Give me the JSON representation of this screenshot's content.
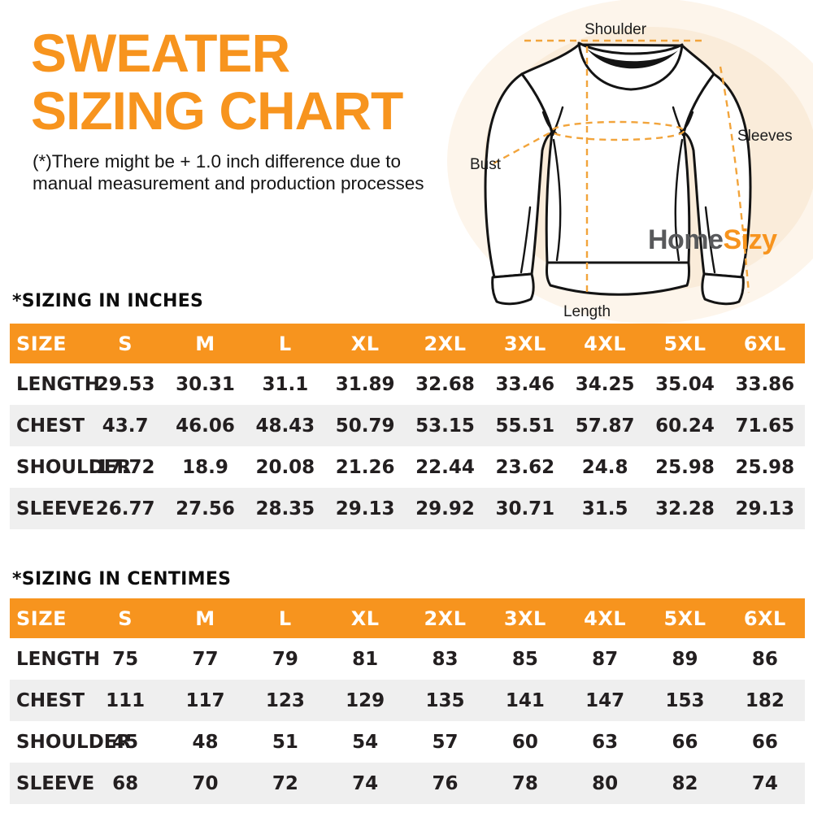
{
  "page": {
    "title_line1": "SWEATER",
    "title_line2": "SIZING CHART",
    "subtitle_line1": "(*)There might be + 1.0 inch difference due to",
    "subtitle_line2": "manual measurement and production processes"
  },
  "diagram": {
    "labels": {
      "shoulder": "Shoulder",
      "bust": "Bust",
      "sleeves": "Sleeves",
      "length": "Length"
    },
    "brand": {
      "part1": "Home",
      "part2": "Sizy"
    }
  },
  "colors": {
    "accent": "#F7941E",
    "dashed_line": "#F2A43B",
    "row_alt": "#EFEFEF",
    "brand_gray": "#58595B",
    "ink": "#231F20"
  },
  "tables": [
    {
      "section_title": "*SIZING IN INCHES",
      "columns": [
        "SIZE",
        "S",
        "M",
        "L",
        "XL",
        "2XL",
        "3XL",
        "4XL",
        "5XL",
        "6XL"
      ],
      "rows": [
        {
          "label": "LENGTH",
          "values": [
            "29.53",
            "30.31",
            "31.1",
            "31.89",
            "32.68",
            "33.46",
            "34.25",
            "35.04",
            "33.86"
          ]
        },
        {
          "label": "CHEST",
          "values": [
            "43.7",
            "46.06",
            "48.43",
            "50.79",
            "53.15",
            "55.51",
            "57.87",
            "60.24",
            "71.65"
          ]
        },
        {
          "label": "SHOULDER",
          "values": [
            "17.72",
            "18.9",
            "20.08",
            "21.26",
            "22.44",
            "23.62",
            "24.8",
            "25.98",
            "25.98"
          ]
        },
        {
          "label": "SLEEVE",
          "values": [
            "26.77",
            "27.56",
            "28.35",
            "29.13",
            "29.92",
            "30.71",
            "31.5",
            "32.28",
            "29.13"
          ]
        }
      ]
    },
    {
      "section_title": "*SIZING IN CENTIMES",
      "columns": [
        "SIZE",
        "S",
        "M",
        "L",
        "XL",
        "2XL",
        "3XL",
        "4XL",
        "5XL",
        "6XL"
      ],
      "rows": [
        {
          "label": "LENGTH",
          "values": [
            "75",
            "77",
            "79",
            "81",
            "83",
            "85",
            "87",
            "89",
            "86"
          ]
        },
        {
          "label": "CHEST",
          "values": [
            "111",
            "117",
            "123",
            "129",
            "135",
            "141",
            "147",
            "153",
            "182"
          ]
        },
        {
          "label": "SHOULDER",
          "values": [
            "45",
            "48",
            "51",
            "54",
            "57",
            "60",
            "63",
            "66",
            "66"
          ]
        },
        {
          "label": "SLEEVE",
          "values": [
            "68",
            "70",
            "72",
            "74",
            "76",
            "78",
            "80",
            "82",
            "74"
          ]
        }
      ]
    }
  ]
}
